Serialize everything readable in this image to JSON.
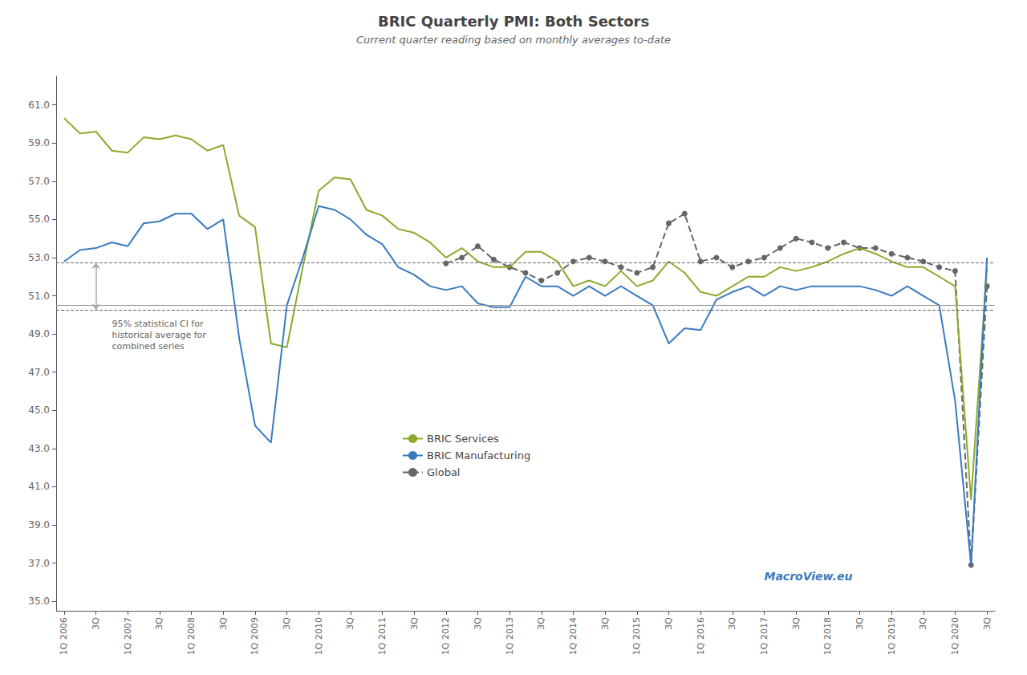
{
  "chart_data": {
    "type": "line",
    "title": "BRIC Quarterly PMI: Both Sectors",
    "subtitle": "Current quarter reading based on monthly averages to-date",
    "categories": [
      "1Q 2006",
      null,
      "3Q",
      null,
      "1Q 2007",
      null,
      "3Q",
      null,
      "1Q 2008",
      null,
      "3Q",
      null,
      "1Q 2009",
      null,
      "3Q",
      null,
      "1Q 2010",
      null,
      "3Q",
      null,
      "1Q 2011",
      null,
      "3Q",
      null,
      "1Q 2012",
      null,
      "3Q",
      null,
      "1Q 2013",
      null,
      "3Q",
      null,
      "1Q 2014",
      null,
      "3Q",
      null,
      "1Q 2015",
      null,
      "3Q",
      null,
      "1Q 2016",
      null,
      "3Q",
      null,
      "1Q 2017",
      null,
      "3Q",
      null,
      "1Q 2018",
      null,
      "3Q",
      null,
      "1Q 2019",
      null,
      "3Q",
      null,
      "1Q 2020",
      null,
      "3Q"
    ],
    "series": [
      {
        "name": "BRIC Services",
        "color": "#8caa2c",
        "line_style": "solid",
        "values": [
          60.3,
          59.5,
          59.6,
          58.6,
          58.5,
          59.3,
          59.2,
          59.4,
          59.2,
          58.6,
          58.9,
          55.2,
          54.6,
          48.5,
          48.3,
          52.5,
          56.5,
          57.2,
          57.1,
          55.5,
          55.2,
          54.5,
          54.3,
          53.8,
          53.0,
          53.5,
          52.8,
          52.5,
          52.5,
          53.3,
          53.3,
          52.8,
          51.5,
          51.8,
          51.5,
          52.3,
          51.5,
          51.8,
          52.8,
          52.2,
          51.2,
          51.0,
          51.5,
          52.0,
          52.0,
          52.5,
          52.3,
          52.5,
          52.8,
          53.2,
          53.5,
          53.2,
          52.8,
          52.5,
          52.5,
          52.0,
          51.5,
          40.3,
          52.5
        ]
      },
      {
        "name": "BRIC Manufacturing",
        "color": "#3a7bbf",
        "line_style": "solid",
        "values": [
          52.8,
          53.4,
          53.5,
          53.8,
          53.6,
          54.8,
          54.9,
          55.3,
          55.3,
          54.5,
          55.0,
          48.8,
          44.2,
          43.3,
          50.5,
          53.0,
          55.7,
          55.5,
          55.0,
          54.2,
          53.7,
          52.5,
          52.1,
          51.5,
          51.3,
          51.5,
          50.6,
          50.4,
          50.4,
          52.0,
          51.5,
          51.5,
          51.0,
          51.5,
          51.0,
          51.5,
          51.0,
          50.5,
          48.5,
          49.3,
          49.2,
          50.8,
          51.2,
          51.5,
          51.0,
          51.5,
          51.3,
          51.5,
          51.5,
          51.5,
          51.5,
          51.3,
          51.0,
          51.5,
          51.0,
          50.5,
          45.5,
          36.9,
          53.0
        ]
      },
      {
        "name": "Global",
        "color": "#666666",
        "line_style": "dashed",
        "marker": "circle",
        "values": [
          null,
          null,
          null,
          null,
          null,
          null,
          null,
          null,
          null,
          null,
          null,
          null,
          null,
          null,
          null,
          null,
          null,
          null,
          null,
          null,
          null,
          null,
          null,
          null,
          52.7,
          53.0,
          53.6,
          52.9,
          52.5,
          52.2,
          51.8,
          52.2,
          52.8,
          53.0,
          52.8,
          52.5,
          52.2,
          52.5,
          54.8,
          55.3,
          52.8,
          53.0,
          52.5,
          52.8,
          53.0,
          53.5,
          54.0,
          53.8,
          53.5,
          53.8,
          53.5,
          53.5,
          53.2,
          53.0,
          52.8,
          52.5,
          52.3,
          36.9,
          51.5
        ]
      }
    ],
    "ylim": [
      34.5,
      62.5
    ],
    "yticks": [
      {
        "value": 35,
        "label": "35.0"
      },
      {
        "value": 37,
        "label": "37.0"
      },
      {
        "value": 39,
        "label": "39.0"
      },
      {
        "value": 41,
        "label": "41.0"
      },
      {
        "value": 43,
        "label": "43.0"
      },
      {
        "value": 45,
        "label": "45.0"
      },
      {
        "value": 47,
        "label": "47.0"
      },
      {
        "value": 49,
        "label": "49.0"
      },
      {
        "value": 51,
        "label": "51.0"
      },
      {
        "value": 53,
        "label": "53.0"
      },
      {
        "value": 55,
        "label": "55.0"
      },
      {
        "value": 57,
        "label": "57.0"
      },
      {
        "value": 59,
        "label": "59.0"
      },
      {
        "value": 61,
        "label": "61.0"
      }
    ],
    "ci_upper": 52.75,
    "ci_lower": 50.25,
    "ci_center": 50.5,
    "annotation": "95% statistical CI for\nhistorical average for\ncombined series",
    "watermark": "MacroView.eu",
    "watermark_color": "#3a7bbf",
    "grid": false,
    "legend": "bottom"
  }
}
